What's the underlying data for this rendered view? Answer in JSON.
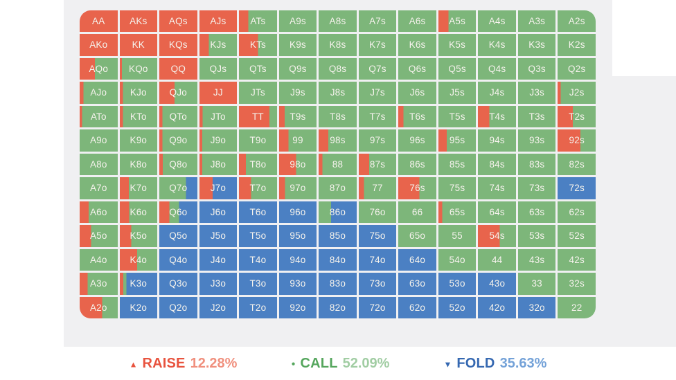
{
  "colors": {
    "raise": "#E8644C",
    "call": "#7DB67A",
    "fold": "#4B80C3",
    "panel": "#F0F0F2",
    "cell_text": "#F7F4EE",
    "raise_label": "#E8533E",
    "raise_value": "#F0907E",
    "call_label": "#55A65D",
    "call_value": "#A1CDA3",
    "fold_label": "#3568B1",
    "fold_value": "#74A2D8"
  },
  "legend": {
    "raise": {
      "icon": "▲",
      "label": "RAISE",
      "value": "12.28%"
    },
    "call": {
      "icon": "●",
      "label": "CALL",
      "value": "52.09%"
    },
    "fold": {
      "icon": "▼",
      "label": "FOLD",
      "value": "35.63%"
    }
  },
  "grid": {
    "note": "cells as [hand, raise%, call%, fold%] left-to-right color split",
    "rows": [
      [
        [
          "AA",
          100,
          0,
          0
        ],
        [
          "AKs",
          100,
          0,
          0
        ],
        [
          "AQs",
          100,
          0,
          0
        ],
        [
          "AJs",
          100,
          0,
          0
        ],
        [
          "ATs",
          25,
          75,
          0
        ],
        [
          "A9s",
          0,
          100,
          0
        ],
        [
          "A8s",
          0,
          100,
          0
        ],
        [
          "A7s",
          0,
          100,
          0
        ],
        [
          "A6s",
          0,
          100,
          0
        ],
        [
          "A5s",
          27,
          73,
          0
        ],
        [
          "A4s",
          0,
          100,
          0
        ],
        [
          "A3s",
          0,
          100,
          0
        ],
        [
          "A2s",
          0,
          100,
          0
        ]
      ],
      [
        [
          "AKo",
          100,
          0,
          0
        ],
        [
          "KK",
          100,
          0,
          0
        ],
        [
          "KQs",
          100,
          0,
          0
        ],
        [
          "KJs",
          25,
          75,
          0
        ],
        [
          "KTs",
          50,
          50,
          0
        ],
        [
          "K9s",
          0,
          100,
          0
        ],
        [
          "K8s",
          0,
          100,
          0
        ],
        [
          "K7s",
          0,
          100,
          0
        ],
        [
          "K6s",
          0,
          100,
          0
        ],
        [
          "K5s",
          0,
          100,
          0
        ],
        [
          "K4s",
          0,
          100,
          0
        ],
        [
          "K3s",
          0,
          100,
          0
        ],
        [
          "K2s",
          0,
          100,
          0
        ]
      ],
      [
        [
          "AQo",
          40,
          60,
          0
        ],
        [
          "KQo",
          6,
          94,
          0
        ],
        [
          "QQ",
          100,
          0,
          0
        ],
        [
          "QJs",
          0,
          100,
          0
        ],
        [
          "QTs",
          0,
          100,
          0
        ],
        [
          "Q9s",
          0,
          100,
          0
        ],
        [
          "Q8s",
          0,
          100,
          0
        ],
        [
          "Q7s",
          0,
          100,
          0
        ],
        [
          "Q6s",
          0,
          100,
          0
        ],
        [
          "Q5s",
          0,
          100,
          0
        ],
        [
          "Q4s",
          0,
          100,
          0
        ],
        [
          "Q3s",
          0,
          100,
          0
        ],
        [
          "Q2s",
          0,
          100,
          0
        ]
      ],
      [
        [
          "AJo",
          10,
          90,
          0
        ],
        [
          "KJo",
          8,
          92,
          0
        ],
        [
          "QJo",
          40,
          60,
          0
        ],
        [
          "JJ",
          100,
          0,
          0
        ],
        [
          "JTs",
          0,
          100,
          0
        ],
        [
          "J9s",
          0,
          100,
          0
        ],
        [
          "J8s",
          0,
          100,
          0
        ],
        [
          "J7s",
          0,
          100,
          0
        ],
        [
          "J6s",
          0,
          100,
          0
        ],
        [
          "J5s",
          0,
          100,
          0
        ],
        [
          "J4s",
          0,
          100,
          0
        ],
        [
          "J3s",
          0,
          100,
          0
        ],
        [
          "J2s",
          8,
          92,
          0
        ]
      ],
      [
        [
          "ATo",
          6,
          94,
          0
        ],
        [
          "KTo",
          8,
          92,
          0
        ],
        [
          "QTo",
          8,
          92,
          0
        ],
        [
          "JTo",
          8,
          92,
          0
        ],
        [
          "TT",
          80,
          20,
          0
        ],
        [
          "T9s",
          15,
          85,
          0
        ],
        [
          "T8s",
          0,
          100,
          0
        ],
        [
          "T7s",
          0,
          100,
          0
        ],
        [
          "T6s",
          14,
          86,
          0
        ],
        [
          "T5s",
          0,
          100,
          0
        ],
        [
          "T4s",
          30,
          70,
          0
        ],
        [
          "T3s",
          0,
          100,
          0
        ],
        [
          "T2s",
          40,
          60,
          0
        ]
      ],
      [
        [
          "A9o",
          0,
          100,
          0
        ],
        [
          "K9o",
          0,
          100,
          0
        ],
        [
          "Q9o",
          8,
          92,
          0
        ],
        [
          "J9o",
          7,
          93,
          0
        ],
        [
          "T9o",
          0,
          100,
          0
        ],
        [
          "99",
          25,
          75,
          0
        ],
        [
          "98s",
          25,
          75,
          0
        ],
        [
          "97s",
          0,
          100,
          0
        ],
        [
          "96s",
          0,
          100,
          0
        ],
        [
          "95s",
          22,
          78,
          0
        ],
        [
          "94s",
          0,
          100,
          0
        ],
        [
          "93s",
          0,
          100,
          0
        ],
        [
          "92s",
          60,
          40,
          0
        ]
      ],
      [
        [
          "A8o",
          0,
          100,
          0
        ],
        [
          "K8o",
          0,
          100,
          0
        ],
        [
          "Q8o",
          9,
          91,
          0
        ],
        [
          "J8o",
          7,
          93,
          0
        ],
        [
          "T8o",
          18,
          82,
          0
        ],
        [
          "98o",
          45,
          55,
          0
        ],
        [
          "88",
          10,
          90,
          0
        ],
        [
          "87s",
          28,
          72,
          0
        ],
        [
          "86s",
          0,
          100,
          0
        ],
        [
          "85s",
          0,
          100,
          0
        ],
        [
          "84s",
          0,
          100,
          0
        ],
        [
          "83s",
          0,
          100,
          0
        ],
        [
          "82s",
          0,
          100,
          0
        ]
      ],
      [
        [
          "A7o",
          0,
          100,
          0
        ],
        [
          "K7o",
          24,
          76,
          0
        ],
        [
          "Q7o",
          0,
          70,
          30
        ],
        [
          "J7o",
          35,
          0,
          65
        ],
        [
          "T7o",
          32,
          68,
          0
        ],
        [
          "97o",
          16,
          84,
          0
        ],
        [
          "87o",
          0,
          100,
          0
        ],
        [
          "77",
          14,
          86,
          0
        ],
        [
          "76s",
          55,
          45,
          0
        ],
        [
          "75s",
          0,
          100,
          0
        ],
        [
          "74s",
          0,
          100,
          0
        ],
        [
          "73s",
          0,
          100,
          0
        ],
        [
          "72s",
          0,
          0,
          100
        ]
      ],
      [
        [
          "A6o",
          24,
          76,
          0
        ],
        [
          "K6o",
          25,
          75,
          0
        ],
        [
          "Q6o",
          26,
          26,
          48
        ],
        [
          "J6o",
          0,
          0,
          100
        ],
        [
          "T6o",
          0,
          0,
          100
        ],
        [
          "96o",
          0,
          0,
          100
        ],
        [
          "86o",
          0,
          33,
          67
        ],
        [
          "76o",
          0,
          100,
          0
        ],
        [
          "66",
          0,
          100,
          0
        ],
        [
          "65s",
          10,
          90,
          0
        ],
        [
          "64s",
          0,
          100,
          0
        ],
        [
          "63s",
          0,
          100,
          0
        ],
        [
          "62s",
          0,
          100,
          0
        ]
      ],
      [
        [
          "A5o",
          30,
          70,
          0
        ],
        [
          "K5o",
          31,
          69,
          0
        ],
        [
          "Q5o",
          0,
          0,
          100
        ],
        [
          "J5o",
          0,
          0,
          100
        ],
        [
          "T5o",
          0,
          0,
          100
        ],
        [
          "95o",
          0,
          0,
          100
        ],
        [
          "85o",
          0,
          0,
          100
        ],
        [
          "75o",
          0,
          0,
          100
        ],
        [
          "65o",
          0,
          100,
          0
        ],
        [
          "55",
          0,
          100,
          0
        ],
        [
          "54s",
          57,
          43,
          0
        ],
        [
          "53s",
          0,
          100,
          0
        ],
        [
          "52s",
          0,
          100,
          0
        ]
      ],
      [
        [
          "A4o",
          0,
          100,
          0
        ],
        [
          "K4o",
          46,
          54,
          0
        ],
        [
          "Q4o",
          0,
          0,
          100
        ],
        [
          "J4o",
          0,
          0,
          100
        ],
        [
          "T4o",
          0,
          0,
          100
        ],
        [
          "94o",
          0,
          0,
          100
        ],
        [
          "84o",
          0,
          0,
          100
        ],
        [
          "74o",
          0,
          0,
          100
        ],
        [
          "64o",
          0,
          0,
          100
        ],
        [
          "54o",
          0,
          100,
          0
        ],
        [
          "44",
          0,
          100,
          0
        ],
        [
          "43s",
          0,
          100,
          0
        ],
        [
          "42s",
          0,
          100,
          0
        ]
      ],
      [
        [
          "A3o",
          21,
          79,
          0
        ],
        [
          "K3o",
          9,
          9,
          82
        ],
        [
          "Q3o",
          0,
          0,
          100
        ],
        [
          "J3o",
          0,
          0,
          100
        ],
        [
          "T3o",
          0,
          0,
          100
        ],
        [
          "93o",
          0,
          0,
          100
        ],
        [
          "83o",
          0,
          0,
          100
        ],
        [
          "73o",
          0,
          0,
          100
        ],
        [
          "63o",
          0,
          0,
          100
        ],
        [
          "53o",
          0,
          0,
          100
        ],
        [
          "43o",
          0,
          0,
          100
        ],
        [
          "33",
          0,
          100,
          0
        ],
        [
          "32s",
          0,
          100,
          0
        ]
      ],
      [
        [
          "A2o",
          59,
          41,
          0
        ],
        [
          "K2o",
          0,
          0,
          100
        ],
        [
          "Q2o",
          0,
          0,
          100
        ],
        [
          "J2o",
          0,
          0,
          100
        ],
        [
          "T2o",
          0,
          0,
          100
        ],
        [
          "92o",
          0,
          0,
          100
        ],
        [
          "82o",
          0,
          0,
          100
        ],
        [
          "72o",
          0,
          0,
          100
        ],
        [
          "62o",
          0,
          0,
          100
        ],
        [
          "52o",
          0,
          0,
          100
        ],
        [
          "42o",
          0,
          0,
          100
        ],
        [
          "32o",
          0,
          0,
          100
        ],
        [
          "22",
          0,
          100,
          0
        ]
      ]
    ]
  }
}
